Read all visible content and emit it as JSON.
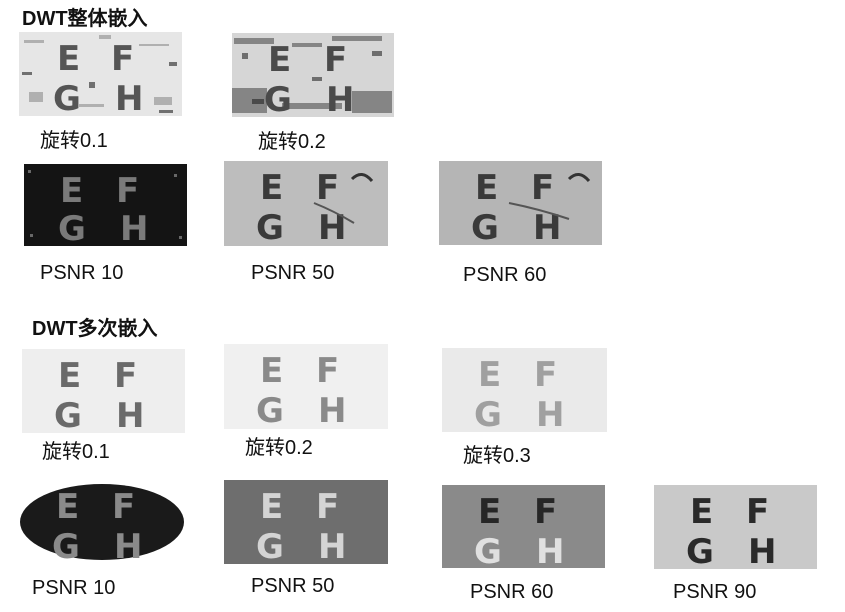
{
  "sections": [
    {
      "heading": "DWT整体嵌入",
      "rotation_row": [
        "旋转0.1",
        "旋转0.2"
      ],
      "psnr_row": [
        "PSNR 10",
        "PSNR 50",
        "PSNR 60"
      ]
    },
    {
      "heading": "DWT多次嵌入",
      "rotation_row": [
        "旋转0.1",
        "旋转0.2",
        "旋转0.3"
      ],
      "psnr_row": [
        "PSNR 10",
        "PSNR 50",
        "PSNR 60",
        "PSNR 90"
      ]
    }
  ]
}
